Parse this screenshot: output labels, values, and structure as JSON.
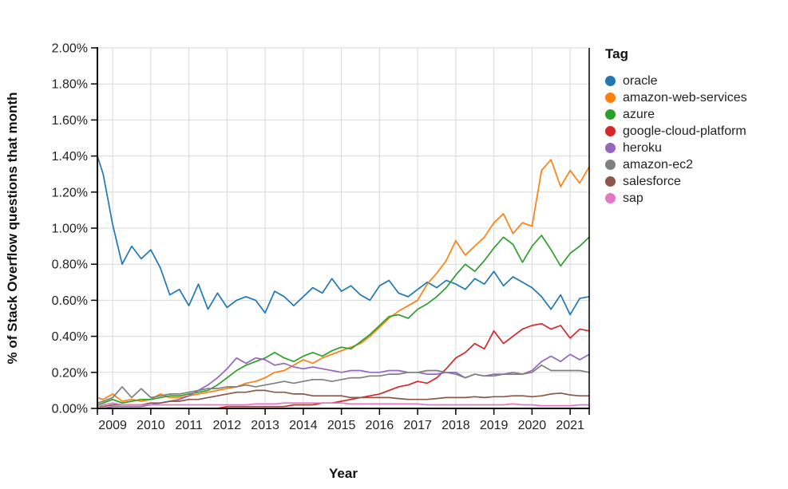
{
  "chart_data": {
    "type": "line",
    "title": "",
    "xlabel": "Year",
    "ylabel": "% of Stack Overflow questions that month",
    "legend_title": "Tag",
    "legend_position": "top-right",
    "grid": true,
    "x_domain": [
      2008.6,
      2021.5
    ],
    "y_domain_pct": [
      0.0,
      2.0
    ],
    "x_ticks": [
      2009,
      2010,
      2011,
      2012,
      2013,
      2014,
      2015,
      2016,
      2017,
      2018,
      2019,
      2020,
      2021
    ],
    "y_ticks": [
      {
        "value": 2.0,
        "label": "2.00%"
      },
      {
        "value": 1.8,
        "label": "1.80%"
      },
      {
        "value": 1.6,
        "label": "1.60%"
      },
      {
        "value": 1.4,
        "label": "1.40%"
      },
      {
        "value": 1.2,
        "label": "1.20%"
      },
      {
        "value": 1.0,
        "label": "1.00%"
      },
      {
        "value": 0.8,
        "label": "0.80%"
      },
      {
        "value": 0.6,
        "label": "0.60%"
      },
      {
        "value": 0.4,
        "label": "0.40%"
      },
      {
        "value": 0.2,
        "label": "0.20%"
      },
      {
        "value": 0.0,
        "label": "0.00%"
      }
    ],
    "axis_color": "#000000",
    "grid_color": "#d9d9d9",
    "tick_label_color": "#222222",
    "x": [
      2008.6,
      2008.75,
      2009,
      2009.25,
      2009.5,
      2009.75,
      2010,
      2010.25,
      2010.5,
      2010.75,
      2011,
      2011.25,
      2011.5,
      2011.75,
      2012,
      2012.25,
      2012.5,
      2012.75,
      2013,
      2013.25,
      2013.5,
      2013.75,
      2014,
      2014.25,
      2014.5,
      2014.75,
      2015,
      2015.25,
      2015.5,
      2015.75,
      2016,
      2016.25,
      2016.5,
      2016.75,
      2017,
      2017.25,
      2017.5,
      2017.75,
      2018,
      2018.25,
      2018.5,
      2018.75,
      2019,
      2019.25,
      2019.5,
      2019.75,
      2020,
      2020.25,
      2020.5,
      2020.75,
      2021,
      2021.25,
      2021.5
    ],
    "series": [
      {
        "name": "oracle",
        "color": "#1f77b4",
        "values": [
          1.4,
          1.3,
          1.02,
          0.8,
          0.9,
          0.83,
          0.88,
          0.78,
          0.63,
          0.66,
          0.57,
          0.69,
          0.55,
          0.64,
          0.56,
          0.6,
          0.62,
          0.6,
          0.53,
          0.65,
          0.62,
          0.57,
          0.62,
          0.67,
          0.64,
          0.72,
          0.65,
          0.68,
          0.63,
          0.6,
          0.68,
          0.71,
          0.64,
          0.62,
          0.66,
          0.7,
          0.67,
          0.71,
          0.69,
          0.66,
          0.72,
          0.69,
          0.76,
          0.68,
          0.73,
          0.7,
          0.67,
          0.62,
          0.55,
          0.63,
          0.52,
          0.61,
          0.62
        ]
      },
      {
        "name": "amazon-web-services",
        "color": "#ff7f0e",
        "values": [
          0.06,
          0.05,
          0.08,
          0.04,
          0.05,
          0.04,
          0.05,
          0.08,
          0.06,
          0.06,
          0.07,
          0.08,
          0.09,
          0.1,
          0.11,
          0.12,
          0.14,
          0.15,
          0.17,
          0.2,
          0.21,
          0.24,
          0.27,
          0.25,
          0.28,
          0.3,
          0.32,
          0.34,
          0.36,
          0.4,
          0.45,
          0.5,
          0.54,
          0.57,
          0.6,
          0.69,
          0.75,
          0.82,
          0.93,
          0.85,
          0.9,
          0.95,
          1.03,
          1.08,
          0.97,
          1.03,
          1.01,
          1.32,
          1.38,
          1.23,
          1.32,
          1.25,
          1.34
        ]
      },
      {
        "name": "azure",
        "color": "#2ca02c",
        "values": [
          0.02,
          0.03,
          0.05,
          0.03,
          0.04,
          0.05,
          0.05,
          0.06,
          0.07,
          0.07,
          0.08,
          0.09,
          0.1,
          0.13,
          0.17,
          0.21,
          0.24,
          0.26,
          0.28,
          0.31,
          0.28,
          0.26,
          0.29,
          0.31,
          0.29,
          0.32,
          0.34,
          0.33,
          0.37,
          0.41,
          0.46,
          0.51,
          0.52,
          0.5,
          0.55,
          0.58,
          0.62,
          0.67,
          0.74,
          0.8,
          0.76,
          0.82,
          0.89,
          0.95,
          0.91,
          0.81,
          0.9,
          0.96,
          0.88,
          0.79,
          0.86,
          0.9,
          0.95
        ]
      },
      {
        "name": "google-cloud-platform",
        "color": "#d62728",
        "values": [
          0.0,
          0.0,
          0.0,
          0.0,
          0.0,
          0.0,
          0.0,
          0.0,
          0.0,
          0.0,
          0.0,
          0.0,
          0.0,
          0.0,
          0.01,
          0.01,
          0.01,
          0.01,
          0.01,
          0.01,
          0.01,
          0.02,
          0.02,
          0.02,
          0.03,
          0.03,
          0.04,
          0.05,
          0.06,
          0.07,
          0.08,
          0.1,
          0.12,
          0.13,
          0.15,
          0.14,
          0.17,
          0.22,
          0.28,
          0.31,
          0.36,
          0.33,
          0.43,
          0.36,
          0.4,
          0.44,
          0.46,
          0.47,
          0.44,
          0.46,
          0.39,
          0.44,
          0.43
        ]
      },
      {
        "name": "heroku",
        "color": "#9467bd",
        "values": [
          0.0,
          0.0,
          0.01,
          0.01,
          0.01,
          0.01,
          0.02,
          0.03,
          0.04,
          0.05,
          0.07,
          0.1,
          0.13,
          0.17,
          0.22,
          0.28,
          0.25,
          0.28,
          0.27,
          0.24,
          0.25,
          0.23,
          0.22,
          0.23,
          0.22,
          0.21,
          0.2,
          0.21,
          0.21,
          0.2,
          0.2,
          0.21,
          0.21,
          0.2,
          0.2,
          0.19,
          0.19,
          0.2,
          0.2,
          0.17,
          0.19,
          0.18,
          0.19,
          0.19,
          0.2,
          0.19,
          0.21,
          0.26,
          0.29,
          0.26,
          0.3,
          0.27,
          0.3
        ]
      },
      {
        "name": "amazon-ec2",
        "color": "#7f7f7f",
        "values": [
          0.03,
          0.04,
          0.06,
          0.12,
          0.06,
          0.11,
          0.06,
          0.07,
          0.08,
          0.08,
          0.09,
          0.1,
          0.11,
          0.11,
          0.12,
          0.12,
          0.13,
          0.12,
          0.13,
          0.14,
          0.15,
          0.14,
          0.15,
          0.16,
          0.16,
          0.15,
          0.16,
          0.17,
          0.17,
          0.18,
          0.18,
          0.19,
          0.19,
          0.2,
          0.2,
          0.21,
          0.21,
          0.2,
          0.19,
          0.17,
          0.19,
          0.18,
          0.18,
          0.19,
          0.19,
          0.19,
          0.2,
          0.24,
          0.21,
          0.21,
          0.21,
          0.21,
          0.2
        ]
      },
      {
        "name": "salesforce",
        "color": "#8c564b",
        "values": [
          0.01,
          0.01,
          0.02,
          0.02,
          0.02,
          0.02,
          0.03,
          0.03,
          0.04,
          0.04,
          0.05,
          0.05,
          0.06,
          0.07,
          0.08,
          0.09,
          0.09,
          0.1,
          0.1,
          0.09,
          0.09,
          0.08,
          0.08,
          0.07,
          0.07,
          0.07,
          0.07,
          0.06,
          0.06,
          0.06,
          0.06,
          0.06,
          0.055,
          0.05,
          0.05,
          0.05,
          0.055,
          0.06,
          0.06,
          0.06,
          0.065,
          0.06,
          0.065,
          0.065,
          0.07,
          0.07,
          0.065,
          0.07,
          0.08,
          0.085,
          0.075,
          0.07,
          0.07
        ]
      },
      {
        "name": "sap",
        "color": "#e377c2",
        "values": [
          0.01,
          0.02,
          0.03,
          0.02,
          0.02,
          0.02,
          0.02,
          0.02,
          0.02,
          0.02,
          0.02,
          0.02,
          0.02,
          0.02,
          0.02,
          0.02,
          0.02,
          0.025,
          0.025,
          0.025,
          0.03,
          0.03,
          0.03,
          0.03,
          0.03,
          0.03,
          0.03,
          0.025,
          0.025,
          0.025,
          0.025,
          0.025,
          0.025,
          0.025,
          0.025,
          0.02,
          0.02,
          0.02,
          0.02,
          0.02,
          0.02,
          0.02,
          0.02,
          0.02,
          0.025,
          0.02,
          0.02,
          0.015,
          0.015,
          0.015,
          0.015,
          0.02,
          0.02
        ]
      }
    ]
  }
}
